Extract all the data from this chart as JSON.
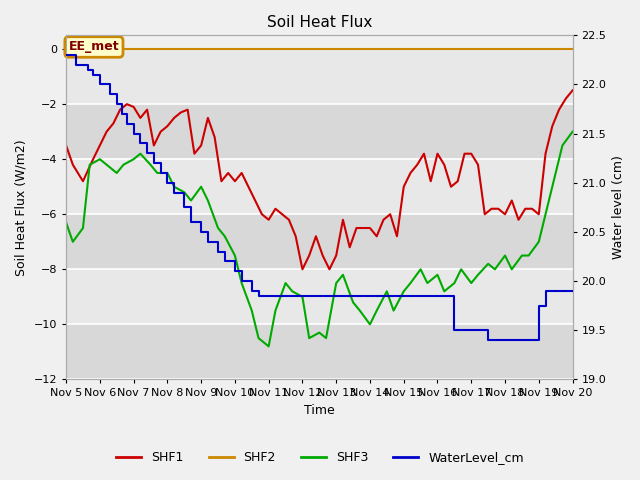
{
  "title": "Soil Heat Flux",
  "xlabel": "Time",
  "ylabel_left": "Soil Heat Flux (W/m2)",
  "ylabel_right": "Water level (cm)",
  "xlim": [
    0,
    15
  ],
  "ylim_left": [
    -12,
    0.5
  ],
  "ylim_right": [
    19.0,
    22.5
  ],
  "y_ticks_left": [
    0,
    -2,
    -4,
    -6,
    -8,
    -10,
    -12
  ],
  "y_ticks_right": [
    22.5,
    22.0,
    21.5,
    21.0,
    20.5,
    20.0,
    19.5,
    19.0
  ],
  "x_ticks": [
    0,
    1,
    2,
    3,
    4,
    5,
    6,
    7,
    8,
    9,
    10,
    11,
    12,
    13,
    14,
    15
  ],
  "x_tick_labels": [
    "Nov 5",
    "Nov 6",
    "Nov 7",
    "Nov 8",
    "Nov 9",
    "Nov 10",
    "Nov 11",
    "Nov 12",
    "Nov 13",
    "Nov 14",
    "Nov 15",
    "Nov 16",
    "Nov 17",
    "Nov 18",
    "Nov 19",
    "Nov 20"
  ],
  "background_color": "#f0f0f0",
  "plot_bg_light": "#f0f0f0",
  "plot_bg_dark": "#e0e0e0",
  "shf1_color": "#cc0000",
  "shf2_color": "#cc8800",
  "shf3_color": "#00aa00",
  "wl_color": "#0000cc",
  "annotation_text": "EE_met",
  "annotation_box_facecolor": "#ffffcc",
  "annotation_box_edgecolor": "#cc8800",
  "shf1_x": [
    0,
    0.2,
    0.5,
    0.8,
    1.0,
    1.2,
    1.4,
    1.6,
    1.8,
    2.0,
    2.2,
    2.4,
    2.6,
    2.8,
    3.0,
    3.2,
    3.4,
    3.6,
    3.8,
    4.0,
    4.2,
    4.4,
    4.6,
    4.8,
    5.0,
    5.2,
    5.4,
    5.6,
    5.8,
    6.0,
    6.2,
    6.4,
    6.6,
    6.8,
    7.0,
    7.2,
    7.4,
    7.6,
    7.8,
    8.0,
    8.2,
    8.4,
    8.6,
    8.8,
    9.0,
    9.2,
    9.4,
    9.6,
    9.8,
    10.0,
    10.2,
    10.4,
    10.6,
    10.8,
    11.0,
    11.2,
    11.4,
    11.6,
    11.8,
    12.0,
    12.2,
    12.4,
    12.6,
    12.8,
    13.0,
    13.2,
    13.4,
    13.6,
    13.8,
    14.0,
    14.2,
    14.4,
    14.6,
    14.8,
    15.0
  ],
  "shf1_y": [
    -3.5,
    -4.2,
    -4.8,
    -4.0,
    -3.5,
    -3.0,
    -2.7,
    -2.2,
    -2.0,
    -2.1,
    -2.5,
    -2.2,
    -3.5,
    -3.0,
    -2.8,
    -2.5,
    -2.3,
    -2.2,
    -3.8,
    -3.5,
    -2.5,
    -3.2,
    -4.8,
    -4.5,
    -4.8,
    -4.5,
    -5.0,
    -5.5,
    -6.0,
    -6.2,
    -5.8,
    -6.0,
    -6.2,
    -6.8,
    -8.0,
    -7.5,
    -6.8,
    -7.5,
    -8.0,
    -7.5,
    -6.2,
    -7.2,
    -6.5,
    -6.5,
    -6.5,
    -6.8,
    -6.2,
    -6.0,
    -6.8,
    -5.0,
    -4.5,
    -4.2,
    -3.8,
    -4.8,
    -3.8,
    -4.2,
    -5.0,
    -4.8,
    -3.8,
    -3.8,
    -4.2,
    -6.0,
    -5.8,
    -5.8,
    -6.0,
    -5.5,
    -6.2,
    -5.8,
    -5.8,
    -6.0,
    -3.8,
    -2.8,
    -2.2,
    -1.8,
    -1.5
  ],
  "shf3_x": [
    0,
    0.2,
    0.5,
    0.7,
    1.0,
    1.2,
    1.5,
    1.7,
    2.0,
    2.2,
    2.5,
    2.7,
    3.0,
    3.2,
    3.5,
    3.7,
    4.0,
    4.2,
    4.5,
    4.7,
    5.0,
    5.2,
    5.5,
    5.7,
    6.0,
    6.2,
    6.5,
    6.7,
    7.0,
    7.2,
    7.5,
    7.7,
    8.0,
    8.2,
    8.5,
    8.7,
    9.0,
    9.2,
    9.5,
    9.7,
    10.0,
    10.2,
    10.5,
    10.7,
    11.0,
    11.2,
    11.5,
    11.7,
    12.0,
    12.2,
    12.5,
    12.7,
    13.0,
    13.2,
    13.5,
    13.7,
    14.0,
    14.2,
    14.5,
    14.7,
    15.0
  ],
  "shf3_y": [
    -6.3,
    -7.0,
    -6.5,
    -4.2,
    -4.0,
    -4.2,
    -4.5,
    -4.2,
    -4.0,
    -3.8,
    -4.2,
    -4.5,
    -4.5,
    -5.0,
    -5.2,
    -5.5,
    -5.0,
    -5.5,
    -6.5,
    -6.8,
    -7.5,
    -8.5,
    -9.5,
    -10.5,
    -10.8,
    -9.5,
    -8.5,
    -8.8,
    -9.0,
    -10.5,
    -10.3,
    -10.5,
    -8.5,
    -8.2,
    -9.2,
    -9.5,
    -10.0,
    -9.5,
    -8.8,
    -9.5,
    -8.8,
    -8.5,
    -8.0,
    -8.5,
    -8.2,
    -8.8,
    -8.5,
    -8.0,
    -8.5,
    -8.2,
    -7.8,
    -8.0,
    -7.5,
    -8.0,
    -7.5,
    -7.5,
    -7.0,
    -6.0,
    -4.5,
    -3.5,
    -3.0
  ],
  "wl_x": [
    0.0,
    0.15,
    0.3,
    0.5,
    0.65,
    0.8,
    1.0,
    1.15,
    1.3,
    1.5,
    1.65,
    1.8,
    2.0,
    2.2,
    2.4,
    2.6,
    2.8,
    3.0,
    3.2,
    3.5,
    3.7,
    4.0,
    4.2,
    4.5,
    4.7,
    5.0,
    5.2,
    5.5,
    5.7,
    6.0,
    6.2,
    6.5,
    6.7,
    7.0,
    7.2,
    7.5,
    7.7,
    8.0,
    8.2,
    8.5,
    8.7,
    9.0,
    9.2,
    9.5,
    9.7,
    10.0,
    10.2,
    10.5,
    10.7,
    11.0,
    11.2,
    11.5,
    11.7,
    12.0,
    12.2,
    12.5,
    12.7,
    13.0,
    13.2,
    13.5,
    13.7,
    14.0,
    14.2,
    14.5,
    14.7,
    15.0
  ],
  "wl_y": [
    22.3,
    22.3,
    22.2,
    22.2,
    22.15,
    22.1,
    22.0,
    22.0,
    21.9,
    21.8,
    21.7,
    21.6,
    21.5,
    21.4,
    21.3,
    21.2,
    21.1,
    21.0,
    20.9,
    20.75,
    20.6,
    20.5,
    20.4,
    20.3,
    20.2,
    20.1,
    20.0,
    19.9,
    19.85,
    19.85,
    19.85,
    19.85,
    19.85,
    19.85,
    19.85,
    19.85,
    19.85,
    19.85,
    19.85,
    19.85,
    19.85,
    19.85,
    19.85,
    19.85,
    19.85,
    19.85,
    19.85,
    19.85,
    19.85,
    19.85,
    19.85,
    19.5,
    19.5,
    19.5,
    19.5,
    19.4,
    19.4,
    19.4,
    19.4,
    19.4,
    19.4,
    19.75,
    19.9,
    19.9,
    19.9,
    19.9
  ],
  "shf2_y": 0.0,
  "band_colors": [
    "#e8e8e8",
    "#d8d8d8"
  ],
  "band_boundaries": [
    0,
    -2,
    -4,
    -6,
    -8,
    -10,
    -12
  ]
}
